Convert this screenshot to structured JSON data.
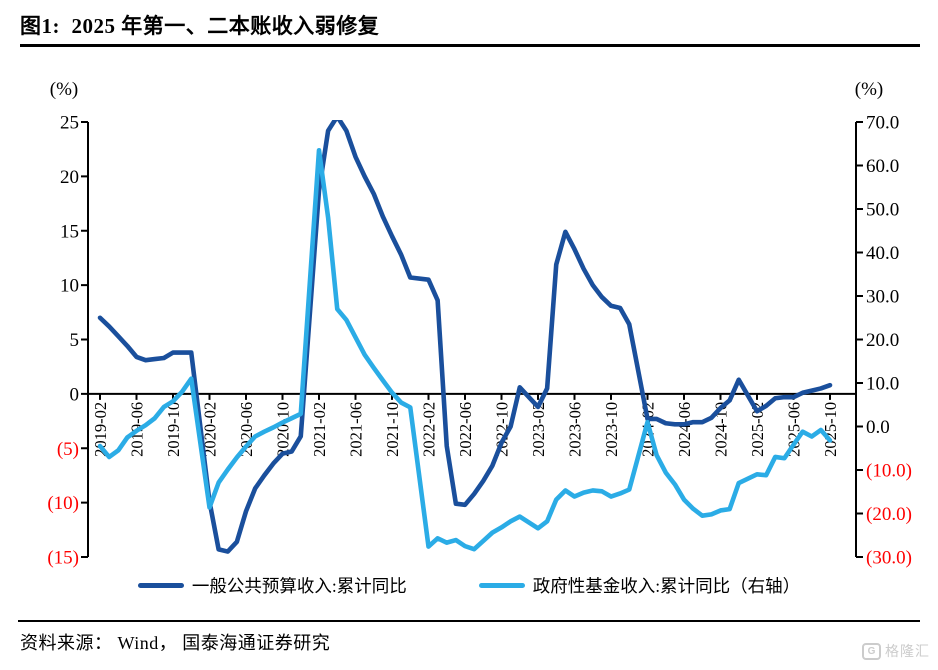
{
  "figure": {
    "title": "图1:  2025 年第一、二本账收入弱修复"
  },
  "source": {
    "text": "资料来源： Wind， 国泰海通证券研究"
  },
  "watermark": {
    "icon_letter": "G",
    "text": "格隆汇"
  },
  "colors": {
    "dark_blue": "#1a4f9c",
    "light_blue": "#2bace6",
    "negative_label_red": "#ff0000",
    "axis_black": "#000000",
    "watermark_gray": "#cccccc"
  },
  "chart_data": {
    "type": "line",
    "title": "2025 年第一、二本账收入弱修复",
    "grid": false,
    "legend_position": "bottom-center",
    "left_axis": {
      "unit": "(%)",
      "min": -15,
      "max": 25,
      "tick_step": 5,
      "tick_values": [
        25,
        20,
        15,
        10,
        5,
        0,
        -5,
        -10,
        -15
      ],
      "tick_labels": [
        "25",
        "20",
        "15",
        "10",
        "5",
        "0",
        "(5)",
        "(10)",
        "(15)"
      ]
    },
    "right_axis": {
      "unit": "(%)",
      "min": -30,
      "max": 70,
      "tick_step": 10,
      "tick_values": [
        70,
        60,
        50,
        40,
        30,
        20,
        10,
        0,
        -10,
        -20,
        -30
      ],
      "tick_labels": [
        "70.0",
        "60.0",
        "50.0",
        "40.0",
        "30.0",
        "20.0",
        "10.0",
        "0.0",
        "(10.0)",
        "(20.0)",
        "(30.0)"
      ]
    },
    "x_tick_labels": [
      "2019-02",
      "2019-06",
      "2019-10",
      "2020-02",
      "2020-06",
      "2020-10",
      "2021-02",
      "2021-06",
      "2021-10",
      "2022-02",
      "2022-06",
      "2022-10",
      "2023-02",
      "2023-06",
      "2023-10",
      "2024-02",
      "2024-06",
      "2024-10",
      "2025-02",
      "2025-06",
      "2025-10"
    ],
    "series": [
      {
        "name": "一般公共预算收入:累计同比",
        "axis": "left",
        "color": "#1a4f9c",
        "points": [
          [
            "2019-02",
            7.0
          ],
          [
            "2019-03",
            6.2
          ],
          [
            "2019-04",
            5.3
          ],
          [
            "2019-05",
            4.4
          ],
          [
            "2019-06",
            3.4
          ],
          [
            "2019-07",
            3.1
          ],
          [
            "2019-08",
            3.2
          ],
          [
            "2019-09",
            3.3
          ],
          [
            "2019-10",
            3.8
          ],
          [
            "2019-11",
            3.8
          ],
          [
            "2019-12",
            3.8
          ],
          [
            "2020-02",
            -9.9
          ],
          [
            "2020-03",
            -14.3
          ],
          [
            "2020-04",
            -14.5
          ],
          [
            "2020-05",
            -13.6
          ],
          [
            "2020-06",
            -10.8
          ],
          [
            "2020-07",
            -8.7
          ],
          [
            "2020-08",
            -7.5
          ],
          [
            "2020-09",
            -6.4
          ],
          [
            "2020-10",
            -5.5
          ],
          [
            "2020-11",
            -5.3
          ],
          [
            "2020-12",
            -3.9
          ],
          [
            "2021-02",
            18.7
          ],
          [
            "2021-03",
            24.2
          ],
          [
            "2021-04",
            25.5
          ],
          [
            "2021-05",
            24.2
          ],
          [
            "2021-06",
            21.8
          ],
          [
            "2021-07",
            20.0
          ],
          [
            "2021-08",
            18.4
          ],
          [
            "2021-09",
            16.3
          ],
          [
            "2021-10",
            14.5
          ],
          [
            "2021-11",
            12.8
          ],
          [
            "2021-12",
            10.7
          ],
          [
            "2022-02",
            10.5
          ],
          [
            "2022-03",
            8.6
          ],
          [
            "2022-04",
            -4.8
          ],
          [
            "2022-05",
            -10.1
          ],
          [
            "2022-06",
            -10.2
          ],
          [
            "2022-07",
            -9.2
          ],
          [
            "2022-08",
            -8.0
          ],
          [
            "2022-09",
            -6.6
          ],
          [
            "2022-10",
            -4.5
          ],
          [
            "2022-11",
            -3.0
          ],
          [
            "2022-12",
            0.6
          ],
          [
            "2023-02",
            -1.2
          ],
          [
            "2023-03",
            0.5
          ],
          [
            "2023-04",
            11.9
          ],
          [
            "2023-05",
            14.9
          ],
          [
            "2023-06",
            13.3
          ],
          [
            "2023-07",
            11.5
          ],
          [
            "2023-08",
            10.0
          ],
          [
            "2023-09",
            8.9
          ],
          [
            "2023-10",
            8.1
          ],
          [
            "2023-11",
            7.9
          ],
          [
            "2023-12",
            6.4
          ],
          [
            "2024-02",
            -2.3
          ],
          [
            "2024-03",
            -2.3
          ],
          [
            "2024-04",
            -2.7
          ],
          [
            "2024-05",
            -2.8
          ],
          [
            "2024-06",
            -2.8
          ],
          [
            "2024-07",
            -2.6
          ],
          [
            "2024-08",
            -2.6
          ],
          [
            "2024-09",
            -2.2
          ],
          [
            "2024-10",
            -1.3
          ],
          [
            "2024-11",
            -0.6
          ],
          [
            "2024-12",
            1.3
          ],
          [
            "2025-02",
            -1.6
          ],
          [
            "2025-03",
            -1.1
          ],
          [
            "2025-04",
            -0.4
          ],
          [
            "2025-05",
            -0.3
          ],
          [
            "2025-06",
            -0.3
          ],
          [
            "2025-07",
            0.1
          ],
          [
            "2025-08",
            0.3
          ],
          [
            "2025-09",
            0.5
          ],
          [
            "2025-10",
            0.8
          ]
        ]
      },
      {
        "name": "政府性基金收入:累计同比（右轴）",
        "axis": "right",
        "color": "#2bace6",
        "points": [
          [
            "2019-02",
            -4.5
          ],
          [
            "2019-03",
            -7.0
          ],
          [
            "2019-04",
            -5.5
          ],
          [
            "2019-05",
            -2.5
          ],
          [
            "2019-06",
            -1.0
          ],
          [
            "2019-07",
            0.3
          ],
          [
            "2019-08",
            1.9
          ],
          [
            "2019-09",
            4.5
          ],
          [
            "2019-10",
            5.8
          ],
          [
            "2019-11",
            8.0
          ],
          [
            "2019-12",
            11.0
          ],
          [
            "2020-02",
            -18.6
          ],
          [
            "2020-03",
            -12.9
          ],
          [
            "2020-04",
            -9.9
          ],
          [
            "2020-05",
            -7.1
          ],
          [
            "2020-06",
            -4.6
          ],
          [
            "2020-07",
            -2.3
          ],
          [
            "2020-08",
            -1.2
          ],
          [
            "2020-09",
            -0.2
          ],
          [
            "2020-10",
            0.9
          ],
          [
            "2020-11",
            1.9
          ],
          [
            "2020-12",
            2.9
          ],
          [
            "2021-02",
            63.5
          ],
          [
            "2021-03",
            48.0
          ],
          [
            "2021-04",
            27.0
          ],
          [
            "2021-05",
            24.5
          ],
          [
            "2021-06",
            20.5
          ],
          [
            "2021-07",
            16.5
          ],
          [
            "2021-08",
            13.5
          ],
          [
            "2021-09",
            10.6
          ],
          [
            "2021-10",
            7.8
          ],
          [
            "2021-11",
            5.5
          ],
          [
            "2021-12",
            4.4
          ],
          [
            "2022-02",
            -27.6
          ],
          [
            "2022-03",
            -25.7
          ],
          [
            "2022-04",
            -26.7
          ],
          [
            "2022-05",
            -26.1
          ],
          [
            "2022-06",
            -27.5
          ],
          [
            "2022-07",
            -28.2
          ],
          [
            "2022-08",
            -26.3
          ],
          [
            "2022-09",
            -24.4
          ],
          [
            "2022-10",
            -23.2
          ],
          [
            "2022-11",
            -21.8
          ],
          [
            "2022-12",
            -20.7
          ],
          [
            "2023-02",
            -23.4
          ],
          [
            "2023-03",
            -21.8
          ],
          [
            "2023-04",
            -16.8
          ],
          [
            "2023-05",
            -14.7
          ],
          [
            "2023-06",
            -16.1
          ],
          [
            "2023-07",
            -15.2
          ],
          [
            "2023-08",
            -14.7
          ],
          [
            "2023-09",
            -14.9
          ],
          [
            "2023-10",
            -16.1
          ],
          [
            "2023-11",
            -15.4
          ],
          [
            "2023-12",
            -14.5
          ],
          [
            "2024-02",
            1.0
          ],
          [
            "2024-03",
            -6.6
          ],
          [
            "2024-04",
            -10.6
          ],
          [
            "2024-05",
            -13.3
          ],
          [
            "2024-06",
            -16.8
          ],
          [
            "2024-07",
            -18.9
          ],
          [
            "2024-08",
            -20.5
          ],
          [
            "2024-09",
            -20.2
          ],
          [
            "2024-10",
            -19.3
          ],
          [
            "2024-11",
            -19.0
          ],
          [
            "2024-12",
            -13.0
          ],
          [
            "2025-02",
            -11.0
          ],
          [
            "2025-03",
            -11.2
          ],
          [
            "2025-04",
            -7.0
          ],
          [
            "2025-05",
            -7.3
          ],
          [
            "2025-06",
            -4.2
          ],
          [
            "2025-07",
            -1.2
          ],
          [
            "2025-08",
            -2.3
          ],
          [
            "2025-09",
            -0.8
          ],
          [
            "2025-10",
            -3.2
          ]
        ]
      }
    ]
  }
}
